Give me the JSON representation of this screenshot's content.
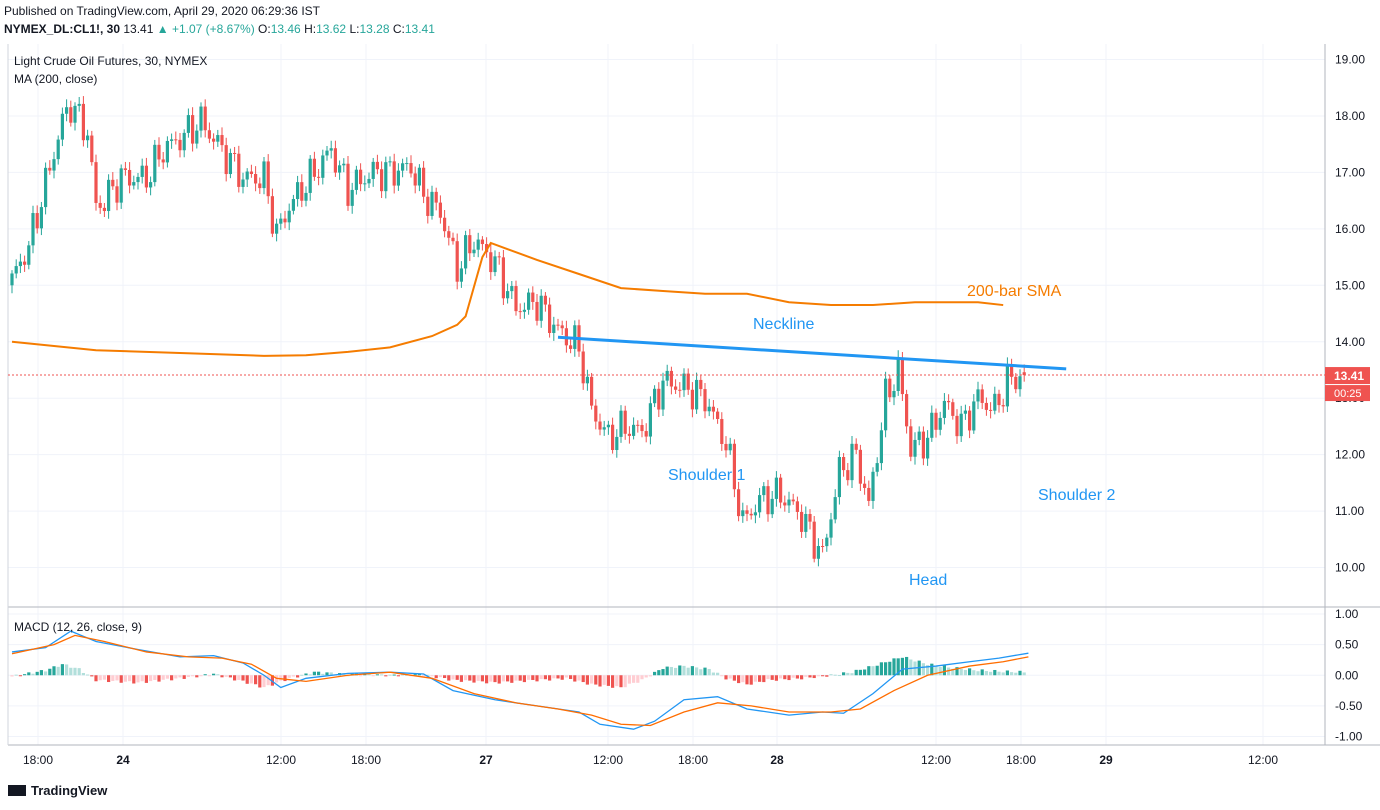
{
  "header": {
    "published": "Published on TradingView.com, April 29, 2020 06:29:36 IST",
    "symbol": "NYMEX_DL:CL1!, 30",
    "last": "13.41",
    "change": "▲ +1.07 (+8.67%)",
    "open_label": "O:",
    "open": "13.46",
    "high_label": "H:",
    "high": "13.62",
    "low_label": "L:",
    "low": "13.28",
    "close_label": "C:",
    "close": "13.41"
  },
  "main_pane": {
    "title": "Light Crude Oil Futures, 30, NYMEX",
    "indicator": "MA (200, close)"
  },
  "macd_pane": {
    "title": "MACD (12, 26, close, 9)"
  },
  "price_tag": {
    "value": "13.41",
    "countdown": "00:25"
  },
  "footer": {
    "brand": "TradingView"
  },
  "colors": {
    "up": "#26a69a",
    "down": "#ef5350",
    "sma": "#f57c00",
    "macd": "#2196f3",
    "signal": "#ff6d00",
    "pattern": "#2196f3"
  },
  "chart_data": [
    {
      "type": "candlestick",
      "title": "Light Crude Oil Futures, 30, NYMEX",
      "y_ticks": [
        "10.00",
        "11.00",
        "12.00",
        "13.00",
        "14.00",
        "15.00",
        "16.00",
        "17.00",
        "18.00",
        "19.00"
      ],
      "ylim": [
        9.25,
        19.3
      ],
      "x_ticks": [
        "18:00",
        "24",
        "12:00",
        "18:00",
        "27",
        "12:00",
        "18:00",
        "28",
        "12:00",
        "18:00",
        "29",
        "12:00"
      ],
      "close_key": [
        [
          0,
          15.1
        ],
        [
          4,
          15.7
        ],
        [
          8,
          16.8
        ],
        [
          12,
          17.9
        ],
        [
          14,
          18.2
        ],
        [
          18,
          17.7
        ],
        [
          20,
          16.4
        ],
        [
          22,
          16.5
        ],
        [
          26,
          16.9
        ],
        [
          32,
          16.9
        ],
        [
          36,
          17.4
        ],
        [
          40,
          17.6
        ],
        [
          45,
          17.9
        ],
        [
          50,
          17.4
        ],
        [
          55,
          16.9
        ],
        [
          60,
          16.9
        ],
        [
          63,
          15.9
        ],
        [
          66,
          16.4
        ],
        [
          72,
          17.0
        ],
        [
          76,
          17.4
        ],
        [
          80,
          16.7
        ],
        [
          86,
          17.0
        ],
        [
          90,
          17.0
        ],
        [
          95,
          17.1
        ],
        [
          98,
          16.6
        ],
        [
          102,
          16.3
        ],
        [
          106,
          15.3
        ],
        [
          110,
          15.8
        ],
        [
          115,
          15.4
        ],
        [
          120,
          14.6
        ],
        [
          125,
          14.7
        ],
        [
          130,
          14.2
        ],
        [
          135,
          13.9
        ],
        [
          138,
          12.8
        ],
        [
          142,
          12.3
        ],
        [
          146,
          12.5
        ],
        [
          150,
          12.4
        ],
        [
          155,
          13.3
        ],
        [
          160,
          13.2
        ],
        [
          165,
          13.0
        ],
        [
          170,
          12.2
        ],
        [
          174,
          10.8
        ],
        [
          178,
          11.2
        ],
        [
          183,
          11.3
        ],
        [
          188,
          10.9
        ],
        [
          193,
          10.2
        ],
        [
          197,
          11.7
        ],
        [
          201,
          12.0
        ],
        [
          204,
          11.1
        ],
        [
          208,
          13.0
        ],
        [
          211,
          13.5
        ],
        [
          214,
          12.1
        ],
        [
          218,
          12.3
        ],
        [
          222,
          12.9
        ],
        [
          226,
          12.5
        ],
        [
          230,
          13.0
        ],
        [
          234,
          12.8
        ],
        [
          237,
          13.3
        ],
        [
          241,
          13.41
        ]
      ],
      "last_price": 13.41,
      "series": [
        {
          "name": "MA (200, close)",
          "points": [
            [
              0,
              14.0
            ],
            [
              20,
              13.85
            ],
            [
              40,
              13.8
            ],
            [
              60,
              13.75
            ],
            [
              70,
              13.76
            ],
            [
              80,
              13.82
            ],
            [
              90,
              13.9
            ],
            [
              100,
              14.1
            ],
            [
              106,
              14.3
            ],
            [
              108,
              14.45
            ],
            [
              112,
              15.5
            ],
            [
              114,
              15.75
            ],
            [
              125,
              15.45
            ],
            [
              135,
              15.2
            ],
            [
              145,
              14.95
            ],
            [
              155,
              14.9
            ],
            [
              165,
              14.85
            ],
            [
              175,
              14.85
            ],
            [
              185,
              14.7
            ],
            [
              195,
              14.65
            ],
            [
              205,
              14.65
            ],
            [
              215,
              14.7
            ],
            [
              230,
              14.7
            ],
            [
              236,
              14.65
            ]
          ]
        }
      ],
      "annotations": {
        "sma_label": "200-bar SMA",
        "neckline_label": "Neckline",
        "neckline": [
          [
            130,
            14.08
          ],
          [
            251,
            13.52
          ]
        ],
        "shoulder1_label": "Shoulder 1",
        "head_label": "Head",
        "shoulder2_label": "Shoulder 2"
      }
    },
    {
      "type": "macd",
      "title": "MACD (12, 26, close, 9)",
      "y_ticks": [
        "1.00",
        "0.50",
        "0.00",
        "-0.50",
        "-1.00"
      ],
      "ylim": [
        -1.1,
        1.0
      ],
      "series": [
        {
          "name": "MACD",
          "points": [
            [
              0,
              0.38
            ],
            [
              8,
              0.45
            ],
            [
              14,
              0.72
            ],
            [
              20,
              0.55
            ],
            [
              30,
              0.42
            ],
            [
              40,
              0.3
            ],
            [
              48,
              0.32
            ],
            [
              55,
              0.2
            ],
            [
              60,
              0.0
            ],
            [
              64,
              -0.2
            ],
            [
              70,
              -0.05
            ],
            [
              80,
              0.03
            ],
            [
              90,
              0.05
            ],
            [
              98,
              0.02
            ],
            [
              105,
              -0.25
            ],
            [
              115,
              -0.4
            ],
            [
              125,
              -0.5
            ],
            [
              135,
              -0.6
            ],
            [
              140,
              -0.8
            ],
            [
              148,
              -0.88
            ],
            [
              153,
              -0.75
            ],
            [
              160,
              -0.4
            ],
            [
              168,
              -0.35
            ],
            [
              175,
              -0.55
            ],
            [
              185,
              -0.65
            ],
            [
              193,
              -0.6
            ],
            [
              198,
              -0.62
            ],
            [
              205,
              -0.3
            ],
            [
              212,
              0.1
            ],
            [
              220,
              0.15
            ],
            [
              228,
              0.22
            ],
            [
              235,
              0.28
            ],
            [
              242,
              0.36
            ]
          ]
        },
        {
          "name": "Signal",
          "points": [
            [
              0,
              0.35
            ],
            [
              10,
              0.5
            ],
            [
              15,
              0.65
            ],
            [
              22,
              0.55
            ],
            [
              32,
              0.38
            ],
            [
              42,
              0.3
            ],
            [
              50,
              0.28
            ],
            [
              57,
              0.18
            ],
            [
              63,
              -0.05
            ],
            [
              70,
              -0.1
            ],
            [
              80,
              0.0
            ],
            [
              90,
              0.05
            ],
            [
              100,
              -0.05
            ],
            [
              110,
              -0.3
            ],
            [
              120,
              -0.45
            ],
            [
              130,
              -0.55
            ],
            [
              138,
              -0.65
            ],
            [
              145,
              -0.8
            ],
            [
              152,
              -0.82
            ],
            [
              160,
              -0.6
            ],
            [
              168,
              -0.45
            ],
            [
              176,
              -0.5
            ],
            [
              185,
              -0.6
            ],
            [
              195,
              -0.6
            ],
            [
              202,
              -0.55
            ],
            [
              210,
              -0.25
            ],
            [
              218,
              0.0
            ],
            [
              228,
              0.15
            ],
            [
              236,
              0.22
            ],
            [
              242,
              0.3
            ]
          ]
        }
      ],
      "histogram_key": [
        [
          0,
          -0.02
        ],
        [
          8,
          0.08
        ],
        [
          12,
          0.18
        ],
        [
          16,
          0.1
        ],
        [
          20,
          -0.08
        ],
        [
          30,
          -0.12
        ],
        [
          40,
          -0.05
        ],
        [
          48,
          0.02
        ],
        [
          55,
          -0.1
        ],
        [
          60,
          -0.2
        ],
        [
          66,
          -0.05
        ],
        [
          72,
          0.05
        ],
        [
          80,
          0.02
        ],
        [
          90,
          0.0
        ],
        [
          98,
          0.01
        ],
        [
          105,
          -0.08
        ],
        [
          115,
          -0.12
        ],
        [
          125,
          -0.08
        ],
        [
          132,
          -0.05
        ],
        [
          138,
          -0.15
        ],
        [
          145,
          -0.2
        ],
        [
          150,
          -0.08
        ],
        [
          155,
          0.12
        ],
        [
          160,
          0.15
        ],
        [
          166,
          0.1
        ],
        [
          170,
          -0.05
        ],
        [
          175,
          -0.15
        ],
        [
          180,
          -0.08
        ],
        [
          188,
          -0.05
        ],
        [
          195,
          0.0
        ],
        [
          200,
          0.05
        ],
        [
          205,
          0.15
        ],
        [
          212,
          0.3
        ],
        [
          218,
          0.18
        ],
        [
          224,
          0.12
        ],
        [
          230,
          0.08
        ],
        [
          236,
          0.06
        ],
        [
          242,
          0.05
        ]
      ]
    }
  ]
}
